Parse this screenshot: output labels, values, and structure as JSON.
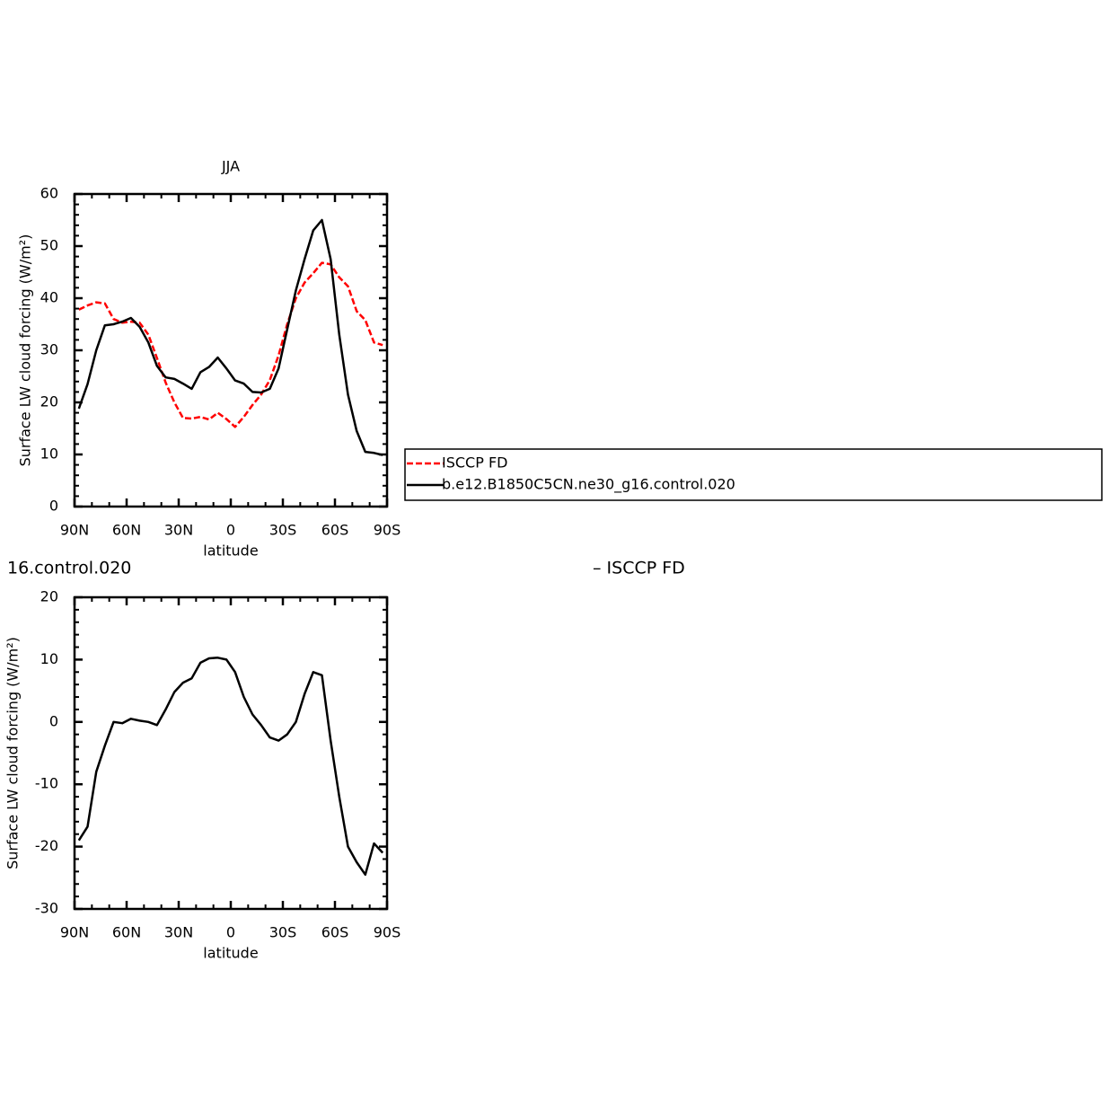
{
  "chart_data": [
    {
      "type": "line",
      "title": "JJA",
      "xlabel": "latitude",
      "ylabel": "Surface LW cloud forcing (W/m²)",
      "x": [
        87.5,
        82.5,
        77.5,
        72.5,
        67.5,
        62.5,
        57.5,
        52.5,
        47.5,
        42.5,
        37.5,
        32.5,
        27.5,
        22.5,
        17.5,
        12.5,
        7.5,
        2.5,
        -2.5,
        -7.5,
        -12.5,
        -17.5,
        -22.5,
        -27.5,
        -32.5,
        -37.5,
        -42.5,
        -47.5,
        -52.5,
        -57.5,
        -62.5,
        -67.5,
        -72.5,
        -77.5,
        -82.5,
        -87.5
      ],
      "xlim": [
        90,
        -90
      ],
      "xticks": [
        {
          "value": 90,
          "label": "90N"
        },
        {
          "value": 60,
          "label": "60N"
        },
        {
          "value": 30,
          "label": "30N"
        },
        0,
        {
          "value": -30,
          "label": "30S"
        },
        {
          "value": -60,
          "label": "60S"
        },
        {
          "value": -90,
          "label": "90S"
        }
      ],
      "ylim": [
        0,
        60
      ],
      "yticks": [
        0,
        10,
        20,
        30,
        40,
        50,
        60
      ],
      "legend": true,
      "series": [
        {
          "name": "ISCCP FD",
          "color": "#ff0000",
          "dashed": true,
          "values": [
            37.8,
            38.6,
            39.2,
            39,
            36,
            35.3,
            35.5,
            35.3,
            33,
            28.5,
            23.8,
            20,
            17,
            16.9,
            17.2,
            16.7,
            18,
            16.8,
            15.3,
            17.2,
            19.5,
            21.5,
            24.3,
            29,
            35,
            40,
            43,
            44.8,
            46.8,
            46.5,
            44,
            42.3,
            37.5,
            35.8,
            31.5,
            31
          ]
        },
        {
          "name": "b.e12.B1850C5CN.ne30_g16.control.020",
          "color": "#000000",
          "dashed": false,
          "values": [
            18.8,
            23.5,
            30,
            34.8,
            35,
            35.5,
            36.2,
            34.5,
            31.5,
            27,
            24.8,
            24.5,
            23.6,
            22.6,
            25.8,
            26.8,
            28.6,
            26.5,
            24.2,
            23.6,
            22,
            21.9,
            22.6,
            26.5,
            34,
            41.5,
            47.5,
            53,
            55,
            47.5,
            33,
            21.5,
            14.5,
            10.5,
            10.3,
            9.9
          ]
        }
      ]
    },
    {
      "type": "line",
      "title": "16.control.020",
      "annotation": "– ISCCP FD",
      "xlabel": "latitude",
      "ylabel": "Surface LW cloud forcing (W/m²)",
      "x": [
        87.5,
        82.5,
        77.5,
        72.5,
        67.5,
        62.5,
        57.5,
        52.5,
        47.5,
        42.5,
        37.5,
        32.5,
        27.5,
        22.5,
        17.5,
        12.5,
        7.5,
        2.5,
        -2.5,
        -7.5,
        -12.5,
        -17.5,
        -22.5,
        -27.5,
        -32.5,
        -37.5,
        -42.5,
        -47.5,
        -52.5,
        -57.5,
        -62.5,
        -67.5,
        -72.5,
        -77.5,
        -82.5,
        -87.5
      ],
      "xlim": [
        90,
        -90
      ],
      "xticks": [
        {
          "value": 90,
          "label": "90N"
        },
        {
          "value": 60,
          "label": "60N"
        },
        {
          "value": 30,
          "label": "30N"
        },
        0,
        {
          "value": -30,
          "label": "30S"
        },
        {
          "value": -60,
          "label": "60S"
        },
        {
          "value": -90,
          "label": "90S"
        }
      ],
      "ylim": [
        -30,
        20
      ],
      "yticks": [
        -30,
        -20,
        -10,
        0,
        10,
        20
      ],
      "legend": false,
      "series": [
        {
          "color": "#000000",
          "dashed": false,
          "values": [
            -19,
            -16.8,
            -8,
            -3.8,
            0,
            -0.2,
            0.5,
            0.2,
            0,
            -0.5,
            2,
            4.8,
            6.3,
            7,
            9.5,
            10.2,
            10.3,
            10,
            8,
            4,
            1.2,
            -0.5,
            -2.5,
            -3,
            -2,
            0,
            4.5,
            8,
            7.5,
            -3,
            -12,
            -20,
            -22.5,
            -24.5,
            -19.5,
            -21
          ]
        }
      ]
    }
  ]
}
